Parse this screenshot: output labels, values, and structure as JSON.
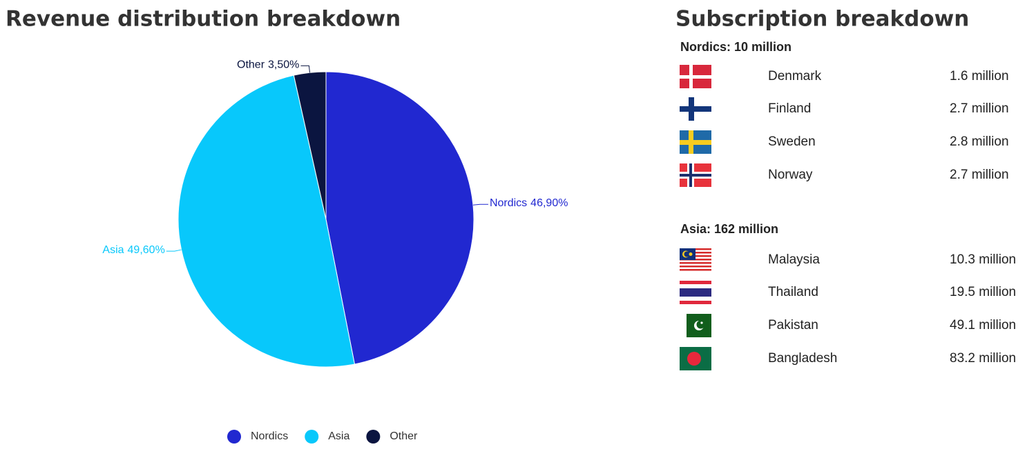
{
  "chart_data": {
    "type": "pie",
    "title": "Revenue distribution breakdown",
    "categories": [
      "Nordics",
      "Asia",
      "Other"
    ],
    "values": [
      46.9,
      49.6,
      3.5
    ],
    "value_labels": [
      "46,90%",
      "49,60%",
      "3,50%"
    ],
    "colors": [
      "#2128d0",
      "#08c8fb",
      "#0b1540"
    ],
    "legend": "bottom"
  },
  "subscription": {
    "title": "Subscription breakdown",
    "groups": [
      {
        "title": "Nordics: 10 million",
        "rows": [
          {
            "country": "Denmark",
            "value": "1.6 million"
          },
          {
            "country": "Finland",
            "value": "2.7 million"
          },
          {
            "country": "Sweden",
            "value": "2.8 million"
          },
          {
            "country": "Norway",
            "value": "2.7 million"
          }
        ]
      },
      {
        "title": "Asia: 162 million",
        "rows": [
          {
            "country": "Malaysia",
            "value": "10.3 million"
          },
          {
            "country": "Thailand",
            "value": "19.5 million"
          },
          {
            "country": "Pakistan",
            "value": "49.1 million"
          },
          {
            "country": "Bangladesh",
            "value": "83.2 million"
          }
        ]
      }
    ]
  }
}
